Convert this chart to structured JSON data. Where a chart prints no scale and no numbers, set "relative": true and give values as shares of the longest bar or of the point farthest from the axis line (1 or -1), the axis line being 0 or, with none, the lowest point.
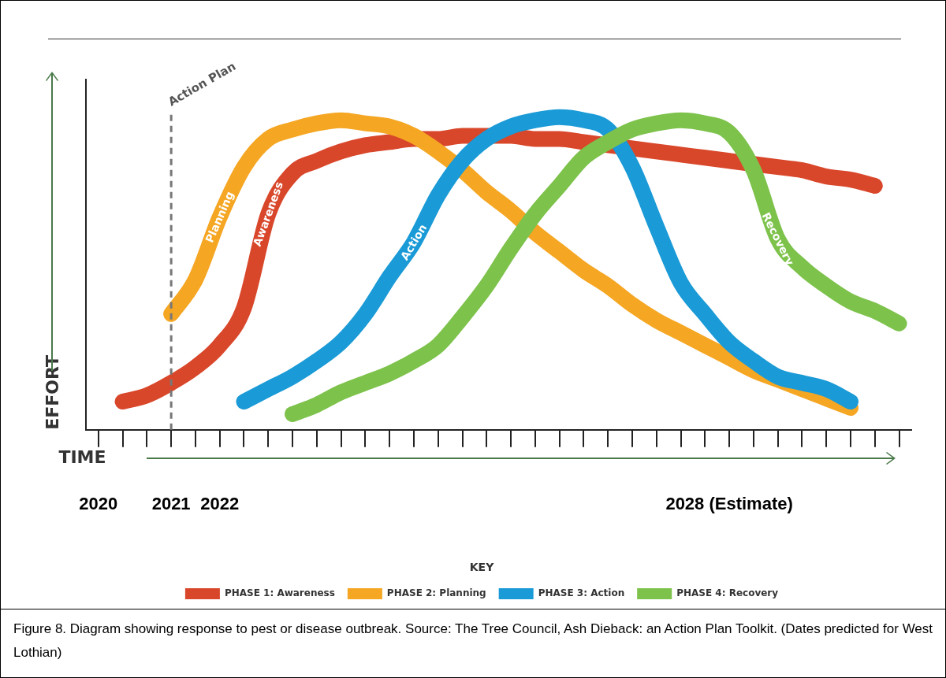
{
  "chart_data": {
    "type": "line",
    "relative": true,
    "xlabel": "TIME",
    "ylabel": "EFFORT",
    "legend_title": "KEY",
    "legend": "bottom",
    "grid": false,
    "tick_labels": "x",
    "line_style": "solid",
    "marker": "none",
    "categories": [
      "2020",
      null,
      null,
      "2021",
      null,
      "2022",
      null,
      null,
      null,
      null,
      null,
      null,
      null,
      null,
      null,
      null,
      null,
      null,
      null,
      null,
      null,
      null,
      null,
      null,
      null,
      null,
      "2028 (Estimate)",
      null,
      null,
      null,
      null,
      null,
      null,
      null
    ],
    "series": [
      {
        "name": "PHASE 1: Awareness",
        "color": "#d9472b",
        "values": [
          null,
          0.09,
          0.11,
          0.15,
          0.2,
          0.27,
          0.39,
          0.69,
          0.82,
          0.86,
          0.89,
          0.91,
          0.92,
          0.93,
          0.93,
          0.94,
          0.94,
          0.94,
          0.93,
          0.93,
          0.92,
          0.91,
          0.9,
          0.89,
          0.88,
          0.87,
          0.86,
          0.85,
          0.84,
          0.83,
          0.81,
          0.8,
          0.78,
          null
        ]
      },
      {
        "name": "PHASE 2: Planning",
        "color": "#f5a623",
        "values": [
          null,
          null,
          null,
          0.37,
          0.48,
          0.68,
          0.84,
          0.93,
          0.96,
          0.98,
          0.99,
          0.98,
          0.97,
          0.94,
          0.89,
          0.83,
          0.76,
          0.7,
          0.63,
          0.57,
          0.51,
          0.46,
          0.4,
          0.35,
          0.31,
          0.27,
          0.23,
          0.19,
          0.16,
          0.13,
          0.1,
          0.07,
          null,
          null
        ]
      },
      {
        "name": "PHASE 3: Action",
        "color": "#1a9ad6",
        "values": [
          null,
          null,
          null,
          null,
          null,
          null,
          0.09,
          0.13,
          0.17,
          0.22,
          0.28,
          0.37,
          0.49,
          0.6,
          0.75,
          0.86,
          0.93,
          0.97,
          0.99,
          1,
          0.99,
          0.96,
          0.84,
          0.65,
          0.47,
          0.37,
          0.28,
          0.22,
          0.17,
          0.15,
          0.13,
          0.09,
          null,
          null
        ]
      },
      {
        "name": "PHASE 4: Recovery",
        "color": "#7dc24b",
        "values": [
          null,
          null,
          null,
          null,
          null,
          null,
          null,
          null,
          0.05,
          0.08,
          0.12,
          0.15,
          0.18,
          0.22,
          0.27,
          0.36,
          0.46,
          0.58,
          0.69,
          0.78,
          0.87,
          0.92,
          0.96,
          0.98,
          0.99,
          0.98,
          0.95,
          0.83,
          0.61,
          0.52,
          0.46,
          0.41,
          0.38,
          0.34
        ]
      }
    ],
    "ref_lines": [
      {
        "axis": "x",
        "value": "2021",
        "label": "Action Plan",
        "color": "#777777",
        "line_style": "dashed"
      }
    ],
    "annotations": [
      "Awareness",
      "Planning",
      "Action",
      "Recovery",
      "Figure 8. Diagram showing response to pest or disease outbreak. Source: The Tree Council, Ash Dieback: an Action Plan Toolkit. (Dates predicted for West Lothian)"
    ]
  }
}
